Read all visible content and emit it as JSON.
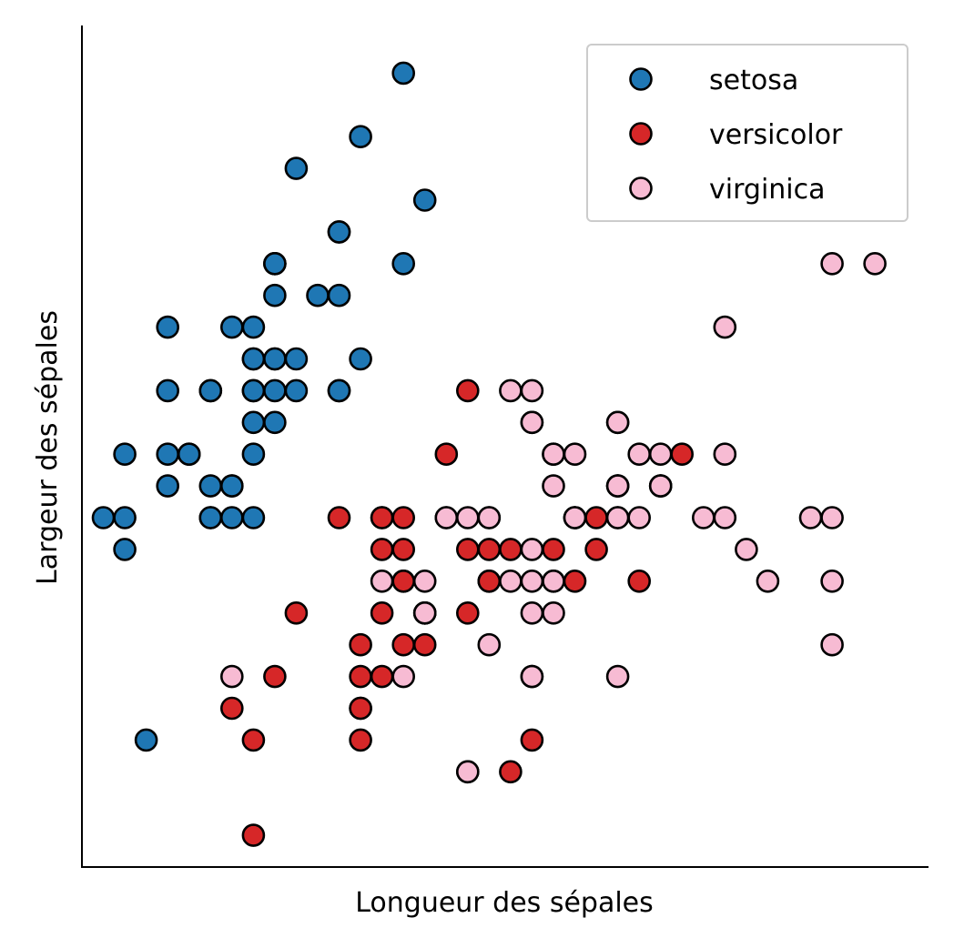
{
  "chart_data": {
    "type": "scatter",
    "xlabel": "Longueur des sépales",
    "ylabel": "Largeur des sépales",
    "xlim": [
      4.2,
      8.15
    ],
    "ylim": [
      1.9,
      4.55
    ],
    "x_ticks_visible": false,
    "y_ticks_visible": false,
    "grid": false,
    "legend_position": "top-right",
    "series": [
      {
        "name": "setosa",
        "color": "#1f77b4",
        "points": [
          [
            5.1,
            3.5
          ],
          [
            4.9,
            3.0
          ],
          [
            4.7,
            3.2
          ],
          [
            4.6,
            3.1
          ],
          [
            5.0,
            3.6
          ],
          [
            5.4,
            3.9
          ],
          [
            4.6,
            3.4
          ],
          [
            5.0,
            3.4
          ],
          [
            4.4,
            2.9
          ],
          [
            4.9,
            3.1
          ],
          [
            5.4,
            3.7
          ],
          [
            4.8,
            3.4
          ],
          [
            4.8,
            3.0
          ],
          [
            4.3,
            3.0
          ],
          [
            5.8,
            4.0
          ],
          [
            5.7,
            4.4
          ],
          [
            5.4,
            3.9
          ],
          [
            5.1,
            3.5
          ],
          [
            5.7,
            3.8
          ],
          [
            5.1,
            3.8
          ],
          [
            5.4,
            3.4
          ],
          [
            5.1,
            3.7
          ],
          [
            4.6,
            3.6
          ],
          [
            5.1,
            3.3
          ],
          [
            4.8,
            3.4
          ],
          [
            5.0,
            3.0
          ],
          [
            5.0,
            3.4
          ],
          [
            5.2,
            3.5
          ],
          [
            5.2,
            3.4
          ],
          [
            4.7,
            3.2
          ],
          [
            4.8,
            3.1
          ],
          [
            5.4,
            3.4
          ],
          [
            5.2,
            4.1
          ],
          [
            5.5,
            4.2
          ],
          [
            4.9,
            3.1
          ],
          [
            5.0,
            3.2
          ],
          [
            5.5,
            3.5
          ],
          [
            4.9,
            3.6
          ],
          [
            4.4,
            3.0
          ],
          [
            5.1,
            3.4
          ],
          [
            5.0,
            3.5
          ],
          [
            4.5,
            2.3
          ],
          [
            4.4,
            3.2
          ],
          [
            5.0,
            3.5
          ],
          [
            5.1,
            3.8
          ],
          [
            4.8,
            3.0
          ],
          [
            5.1,
            3.8
          ],
          [
            4.6,
            3.2
          ],
          [
            5.3,
            3.7
          ],
          [
            5.0,
            3.3
          ]
        ]
      },
      {
        "name": "versicolor",
        "color": "#d62728",
        "points": [
          [
            7.0,
            3.2
          ],
          [
            6.4,
            3.2
          ],
          [
            6.9,
            3.1
          ],
          [
            5.5,
            2.3
          ],
          [
            6.5,
            2.8
          ],
          [
            5.7,
            2.8
          ],
          [
            6.3,
            3.3
          ],
          [
            4.9,
            2.4
          ],
          [
            6.6,
            2.9
          ],
          [
            5.2,
            2.7
          ],
          [
            5.0,
            2.0
          ],
          [
            5.9,
            3.0
          ],
          [
            6.0,
            2.2
          ],
          [
            6.1,
            2.9
          ],
          [
            5.6,
            2.9
          ],
          [
            6.7,
            3.1
          ],
          [
            5.6,
            3.0
          ],
          [
            5.8,
            2.7
          ],
          [
            6.2,
            2.2
          ],
          [
            5.6,
            2.5
          ],
          [
            5.9,
            3.2
          ],
          [
            6.1,
            2.8
          ],
          [
            6.3,
            2.5
          ],
          [
            6.1,
            2.8
          ],
          [
            6.4,
            2.9
          ],
          [
            6.6,
            3.0
          ],
          [
            6.8,
            2.8
          ],
          [
            6.7,
            3.0
          ],
          [
            6.0,
            2.9
          ],
          [
            5.7,
            2.6
          ],
          [
            5.5,
            2.4
          ],
          [
            5.5,
            2.4
          ],
          [
            5.8,
            2.7
          ],
          [
            6.0,
            2.7
          ],
          [
            5.4,
            3.0
          ],
          [
            6.0,
            3.4
          ],
          [
            6.7,
            3.1
          ],
          [
            6.3,
            2.3
          ],
          [
            5.6,
            3.0
          ],
          [
            5.5,
            2.5
          ],
          [
            5.5,
            2.6
          ],
          [
            6.1,
            3.0
          ],
          [
            5.8,
            2.6
          ],
          [
            5.0,
            2.3
          ],
          [
            5.6,
            2.7
          ],
          [
            5.7,
            3.0
          ],
          [
            5.7,
            2.9
          ],
          [
            6.2,
            2.9
          ],
          [
            5.1,
            2.5
          ],
          [
            5.7,
            2.8
          ]
        ]
      },
      {
        "name": "virginica",
        "color": "#f7bbd3",
        "points": [
          [
            6.3,
            3.3
          ],
          [
            5.8,
            2.7
          ],
          [
            7.1,
            3.0
          ],
          [
            6.3,
            2.9
          ],
          [
            6.5,
            3.0
          ],
          [
            7.6,
            3.0
          ],
          [
            4.9,
            2.5
          ],
          [
            7.3,
            2.9
          ],
          [
            6.7,
            2.5
          ],
          [
            7.2,
            3.6
          ],
          [
            6.5,
            3.2
          ],
          [
            6.4,
            2.7
          ],
          [
            6.8,
            3.0
          ],
          [
            5.7,
            2.5
          ],
          [
            5.8,
            2.8
          ],
          [
            6.4,
            3.2
          ],
          [
            6.5,
            3.0
          ],
          [
            7.7,
            3.8
          ],
          [
            7.7,
            2.6
          ],
          [
            6.0,
            2.2
          ],
          [
            6.9,
            3.2
          ],
          [
            5.6,
            2.8
          ],
          [
            7.7,
            2.8
          ],
          [
            6.3,
            2.7
          ],
          [
            6.7,
            3.3
          ],
          [
            7.2,
            3.2
          ],
          [
            6.2,
            2.8
          ],
          [
            6.1,
            3.0
          ],
          [
            6.4,
            2.8
          ],
          [
            7.2,
            3.0
          ],
          [
            7.4,
            2.8
          ],
          [
            7.9,
            3.8
          ],
          [
            6.4,
            2.8
          ],
          [
            6.3,
            2.8
          ],
          [
            6.1,
            2.6
          ],
          [
            7.7,
            3.0
          ],
          [
            6.3,
            3.4
          ],
          [
            6.4,
            3.1
          ],
          [
            6.0,
            3.0
          ],
          [
            6.9,
            3.1
          ],
          [
            6.7,
            3.1
          ],
          [
            6.9,
            3.1
          ],
          [
            5.8,
            2.7
          ],
          [
            6.8,
            3.2
          ],
          [
            6.7,
            3.3
          ],
          [
            6.7,
            3.0
          ],
          [
            6.3,
            2.5
          ],
          [
            6.5,
            3.0
          ],
          [
            6.2,
            3.4
          ],
          [
            5.9,
            3.0
          ]
        ]
      }
    ]
  }
}
